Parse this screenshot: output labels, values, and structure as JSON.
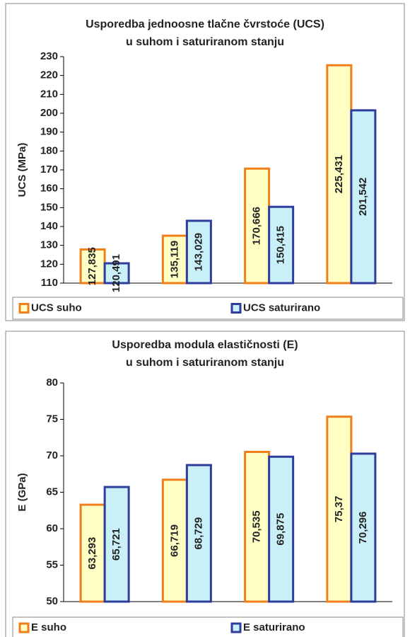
{
  "chart_data": [
    {
      "type": "bar",
      "title": [
        "Usporedba jednoosne tlačne čvrstoće (UCS)",
        "u suhom i saturiranom stanju"
      ],
      "y_label": "UCS (MPa)",
      "categories": [
        null,
        null,
        null,
        null
      ],
      "series": [
        {
          "name": "UCS suho",
          "color": "#f07f1b",
          "fill": "#ffffc4",
          "values": [
            127.835,
            135.119,
            170.666,
            225.431
          ],
          "value_labels": [
            "127,835",
            "135,119",
            "170,666",
            "225,431"
          ]
        },
        {
          "name": "UCS saturirano",
          "color": "#2e3d9c",
          "fill": "#c9f0f8",
          "values": [
            120.491,
            143.029,
            150.415,
            201.542
          ],
          "value_labels": [
            "120,491",
            "143,029",
            "150,415",
            "201,542"
          ]
        }
      ],
      "ylim": [
        110,
        230
      ],
      "yticks": [
        110,
        120,
        130,
        140,
        150,
        160,
        170,
        180,
        190,
        200,
        210,
        220,
        230
      ],
      "grid": false,
      "legend": "bottom"
    },
    {
      "type": "bar",
      "title": [
        "Usporedba modula elastičnosti (E)",
        "u suhom i saturiranom stanju"
      ],
      "y_label": "E (GPa)",
      "categories": [
        null,
        null,
        null,
        null
      ],
      "series": [
        {
          "name": "E suho",
          "color": "#f07f1b",
          "fill": "#ffffc4",
          "values": [
            63.293,
            66.719,
            70.535,
            75.37
          ],
          "value_labels": [
            "63,293",
            "66,719",
            "70,535",
            "75,37"
          ]
        },
        {
          "name": "E saturirano",
          "color": "#2e3d9c",
          "fill": "#c9f0f8",
          "values": [
            65.721,
            68.729,
            69.875,
            70.296
          ],
          "value_labels": [
            "65,721",
            "68,729",
            "69,875",
            "70,296"
          ]
        }
      ],
      "ylim": [
        50,
        80
      ],
      "yticks": [
        50,
        55,
        60,
        65,
        70,
        75,
        80
      ],
      "grid": false,
      "legend": "bottom"
    }
  ]
}
